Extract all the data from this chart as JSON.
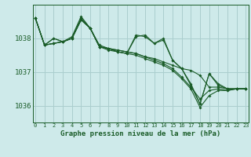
{
  "background_color": "#ceeaea",
  "grid_color": "#aacece",
  "line_color": "#1a5c28",
  "title": "Graphe pression niveau de la mer (hPa)",
  "hours": [
    0,
    1,
    2,
    3,
    4,
    5,
    6,
    7,
    8,
    9,
    10,
    11,
    12,
    13,
    14,
    15,
    16,
    17,
    18,
    19,
    20,
    21,
    22,
    23
  ],
  "yticks": [
    1036,
    1037,
    1038
  ],
  "ylim": [
    1035.5,
    1039.0
  ],
  "xlim": [
    -0.3,
    23.3
  ],
  "series": [
    [
      1038.6,
      1037.8,
      1037.85,
      1037.9,
      1038.0,
      1038.55,
      1038.3,
      1037.75,
      1037.7,
      1037.65,
      1037.6,
      1037.55,
      1037.45,
      1037.4,
      1037.3,
      1037.2,
      1037.1,
      1037.05,
      1036.9,
      1036.55,
      1036.55,
      1036.5,
      1036.5,
      1036.5
    ],
    [
      1038.6,
      1037.8,
      1037.85,
      1037.9,
      1038.0,
      1038.55,
      1038.3,
      1037.75,
      1037.7,
      1037.65,
      1037.6,
      1037.55,
      1037.45,
      1037.35,
      1037.25,
      1037.1,
      1036.85,
      1036.55,
      1036.2,
      1036.45,
      1036.5,
      1036.45,
      1036.5,
      1036.5
    ],
    [
      1038.6,
      1037.8,
      1037.85,
      1037.9,
      1038.0,
      1038.55,
      1038.3,
      1037.75,
      1037.65,
      1037.6,
      1037.55,
      1037.5,
      1037.4,
      1037.3,
      1037.2,
      1037.05,
      1036.8,
      1036.5,
      1035.95,
      1036.3,
      1036.45,
      1036.45,
      1036.5,
      1036.5
    ],
    [
      1038.6,
      1037.8,
      1038.0,
      1037.9,
      1038.0,
      1038.6,
      1038.3,
      1037.75,
      1037.7,
      1037.6,
      1037.55,
      1038.05,
      1038.1,
      1037.85,
      1038.0,
      1037.35,
      1037.1,
      1036.6,
      1036.05,
      1036.95,
      1036.6,
      1036.5,
      1036.5,
      1036.5
    ],
    [
      1038.6,
      1037.8,
      1038.0,
      1037.9,
      1038.05,
      1038.65,
      1038.3,
      1037.8,
      1037.7,
      1037.6,
      1037.55,
      1038.1,
      1038.05,
      1037.85,
      1037.95,
      1037.35,
      1037.1,
      1036.65,
      1036.05,
      1036.95,
      1036.65,
      1036.5,
      1036.5,
      1036.5
    ]
  ]
}
